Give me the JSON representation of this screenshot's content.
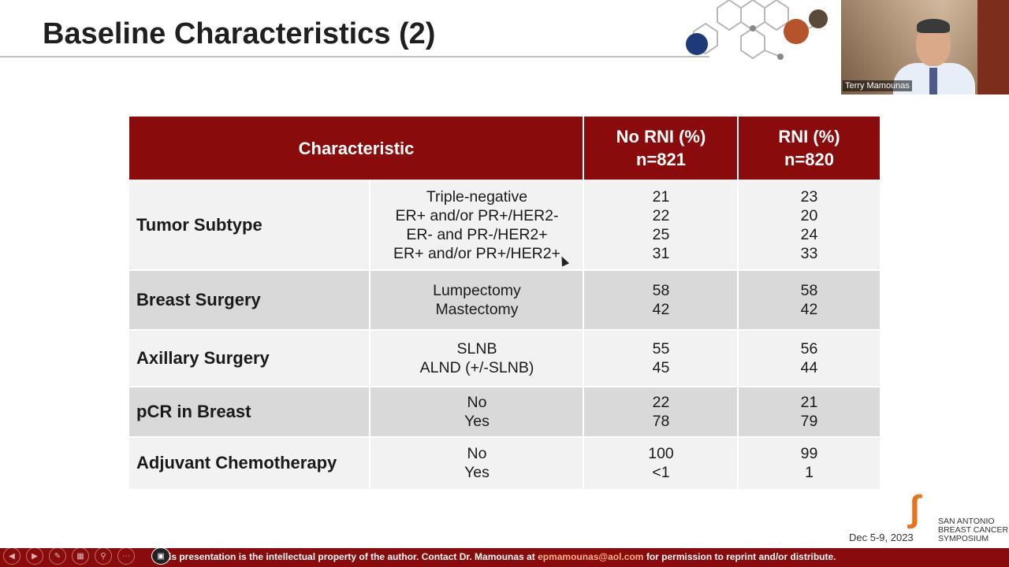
{
  "slide": {
    "title": "Baseline Characteristics (2)"
  },
  "webcam": {
    "name": "Terry Mamounas"
  },
  "table": {
    "headers": {
      "characteristic": "Characteristic",
      "col1_line1": "No RNI (%)",
      "col1_line2": "n=821",
      "col2_line1": "RNI (%)",
      "col2_line2": "n=820"
    },
    "rows": [
      {
        "characteristic": "Tumor Subtype",
        "subgroups": [
          "Triple-negative",
          "ER+ and/or PR+/HER2-",
          "ER- and PR-/HER2+",
          "ER+ and/or PR+/HER2+"
        ],
        "no_rni": [
          "21",
          "22",
          "25",
          "31"
        ],
        "rni": [
          "23",
          "20",
          "24",
          "33"
        ]
      },
      {
        "characteristic": "Breast Surgery",
        "subgroups": [
          "Lumpectomy",
          "Mastectomy"
        ],
        "no_rni": [
          "58",
          "42"
        ],
        "rni": [
          "58",
          "42"
        ]
      },
      {
        "characteristic": "Axillary Surgery",
        "subgroups": [
          "SLNB",
          "ALND (+/-SLNB)"
        ],
        "no_rni": [
          "55",
          "45"
        ],
        "rni": [
          "56",
          "44"
        ]
      },
      {
        "characteristic": "pCR in Breast",
        "subgroups": [
          "No",
          "Yes"
        ],
        "no_rni": [
          "22",
          "78"
        ],
        "rni": [
          "21",
          "79"
        ]
      },
      {
        "characteristic": "Adjuvant Chemotherapy",
        "subgroups": [
          "No",
          "Yes"
        ],
        "no_rni": [
          "100",
          "<1"
        ],
        "rni": [
          "99",
          "1"
        ]
      }
    ]
  },
  "footer": {
    "date": "Dec 5-9, 2023",
    "logo_line1": "SAN ANTONIO",
    "logo_line2": "BREAST CANCER",
    "logo_line3": "SYMPOSIUM",
    "notice_before": "is presentation is the intellectual property of the author.  Contact Dr. Mamounas at ",
    "notice_email": "epmamounas@aol.com",
    "notice_after": " for permission to reprint and/or distribute."
  },
  "colors": {
    "accent": "#8a0b0b",
    "row_light": "#f2f2f2",
    "row_dark": "#d9d9d9"
  },
  "icons": [
    "prev-icon",
    "next-icon",
    "pen-icon",
    "slides-icon",
    "zoom-icon",
    "more-icon",
    "camera-icon"
  ]
}
